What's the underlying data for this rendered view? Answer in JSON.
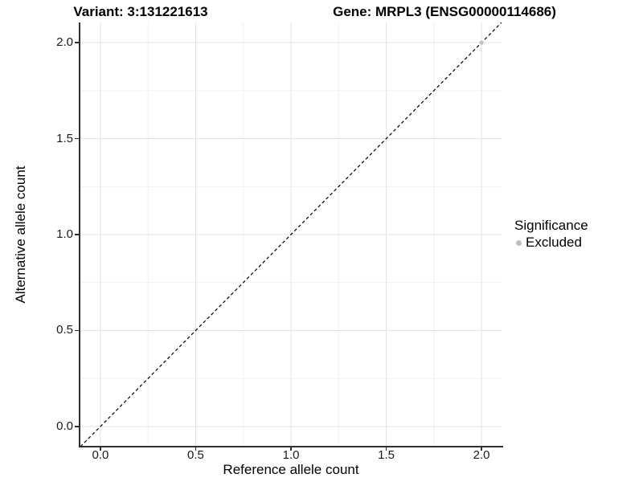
{
  "titles": {
    "variant": "Variant: 3:131221613",
    "gene": "Gene: MRPL3 (ENSG00000114686)"
  },
  "axes": {
    "x_label": "Reference allele count",
    "y_label": "Alternative allele count"
  },
  "legend": {
    "title": "Significance",
    "items": [
      {
        "label": "Excluded",
        "color": "#bebebe"
      }
    ]
  },
  "colors": {
    "background": "#ffffff",
    "grid_major": "#e3e3e3",
    "grid_minor": "#f1f1f1",
    "axis_line": "#2f2f2f",
    "reference_line": "#000000",
    "point": "#c2c2c2"
  },
  "chart_data": {
    "type": "scatter",
    "title": "Variant: 3:131221613 | Gene: MRPL3 (ENSG00000114686)",
    "xlabel": "Reference allele count",
    "ylabel": "Alternative allele count",
    "xlim": [
      -0.105,
      2.105
    ],
    "ylim": [
      -0.105,
      2.105
    ],
    "x_ticks": {
      "values": [
        0,
        0.5,
        1,
        1.5,
        2
      ],
      "labels": [
        "0.0",
        "0.5",
        "1.0",
        "1.5",
        "2.0"
      ]
    },
    "y_ticks": {
      "values": [
        0,
        0.5,
        1,
        1.5,
        2
      ],
      "labels": [
        "0.0",
        "0.5",
        "1.0",
        "1.5",
        "2.0"
      ]
    },
    "x_minor_ticks": [
      0.25,
      0.75,
      1.25,
      1.75
    ],
    "y_minor_ticks": [
      0.25,
      0.75,
      1.25,
      1.75
    ],
    "grid": true,
    "legend_position": "right",
    "reference_line": {
      "slope": 1,
      "intercept": 0,
      "style": "dashed"
    },
    "series": [
      {
        "name": "Excluded",
        "points": [
          {
            "x": 2.0,
            "y": 2.0
          }
        ],
        "color": "#c2c2c2"
      }
    ]
  }
}
